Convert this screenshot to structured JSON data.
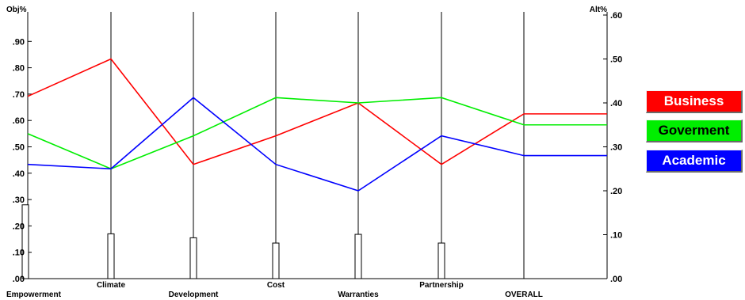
{
  "chart_data": {
    "type": "line",
    "title": "",
    "left_axis_label": "Obj%",
    "right_axis_label": "Alt%",
    "left_ylim": [
      0,
      1.0
    ],
    "right_ylim": [
      0,
      0.6
    ],
    "left_ticks": [
      ".00",
      ".10",
      ".20",
      ".30",
      ".40",
      ".50",
      ".60",
      ".70",
      ".80",
      ".90"
    ],
    "left_tick_values": [
      0,
      0.1,
      0.2,
      0.3,
      0.4,
      0.5,
      0.6,
      0.7,
      0.8,
      0.9
    ],
    "right_ticks": [
      ".00",
      ".10",
      ".20",
      ".30",
      ".40",
      ".50",
      ".60"
    ],
    "right_tick_values": [
      0,
      0.1,
      0.2,
      0.3,
      0.4,
      0.5,
      0.6
    ],
    "categories": [
      "Empowerment",
      "Climate",
      "Development",
      "Cost",
      "Warranties",
      "Partnership",
      "OVERALL"
    ],
    "objective_weights": [
      0.28,
      0.17,
      0.155,
      0.135,
      0.168,
      0.135
    ],
    "series": [
      {
        "name": "Business",
        "color": "#ff0000",
        "values": [
          0.415,
          0.5,
          0.26,
          0.325,
          0.4,
          0.26,
          0.375
        ]
      },
      {
        "name": "Goverment",
        "color": "#00ee00",
        "values": [
          0.33,
          0.25,
          0.325,
          0.412,
          0.4,
          0.412,
          0.35
        ]
      },
      {
        "name": "Academic",
        "color": "#0000ff",
        "values": [
          0.26,
          0.25,
          0.412,
          0.26,
          0.2,
          0.325,
          0.28
        ]
      }
    ],
    "grid": false,
    "legend_position": "right"
  },
  "legend": {
    "business": "Business",
    "government": "Goverment",
    "academic": "Academic"
  },
  "colors": {
    "business_bg": "#ff0000",
    "government_bg": "#00ee00",
    "academic_bg": "#0000ff"
  }
}
